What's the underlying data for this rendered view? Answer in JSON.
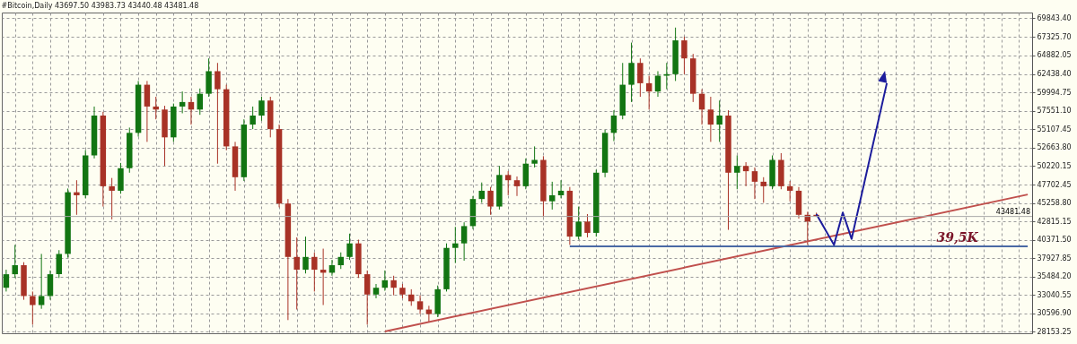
{
  "chart_data": {
    "type": "candlestick",
    "title": "#Bitcoin,Daily  43697.50 43983.73 43440.48 43481.48",
    "categories": [
      null,
      null,
      null,
      null,
      null,
      null,
      null,
      null,
      null,
      null,
      null,
      null,
      null,
      null,
      null,
      null,
      null,
      null,
      null,
      null,
      null,
      null,
      null,
      null,
      null,
      null,
      null,
      null,
      null,
      null,
      null,
      null,
      null,
      null,
      null,
      null,
      null,
      null,
      null,
      null,
      null,
      null,
      null,
      null,
      null,
      null,
      null,
      null,
      null,
      null,
      null,
      null,
      null,
      null,
      null,
      null,
      null,
      null,
      null,
      null,
      null,
      null,
      null,
      null,
      null,
      null,
      null,
      null,
      null,
      null,
      null,
      null,
      null,
      null,
      null,
      null,
      null,
      null,
      null,
      null,
      null,
      null,
      null,
      null,
      null,
      null,
      null,
      null,
      null,
      null,
      null,
      null,
      null,
      null,
      null,
      null,
      null,
      null,
      null,
      null,
      null,
      null,
      null,
      null,
      null,
      null,
      null,
      null,
      null,
      null,
      null,
      null,
      null,
      null,
      null,
      null,
      null
    ],
    "series": [
      {
        "type": "candlestick",
        "ohlc": [
          [
            34000,
            36400,
            33500,
            35800
          ],
          [
            35800,
            39700,
            35300,
            37000
          ],
          [
            37000,
            37400,
            32400,
            32900
          ],
          [
            32900,
            33500,
            29100,
            31700
          ],
          [
            31700,
            38500,
            31200,
            32900
          ],
          [
            32900,
            36300,
            32400,
            35800
          ],
          [
            35800,
            39000,
            35300,
            38500
          ],
          [
            38500,
            47200,
            38000,
            46700
          ],
          [
            46700,
            48300,
            43700,
            46300
          ],
          [
            46300,
            52300,
            45900,
            51600
          ],
          [
            51600,
            58100,
            51200,
            56900
          ],
          [
            56900,
            57400,
            44800,
            47500
          ],
          [
            47500,
            48600,
            43100,
            46900
          ],
          [
            46900,
            50600,
            46500,
            49900
          ],
          [
            49900,
            55300,
            49300,
            54600
          ],
          [
            54600,
            61500,
            54100,
            61000
          ],
          [
            61000,
            61500,
            53400,
            58100
          ],
          [
            58100,
            59400,
            56400,
            57700
          ],
          [
            57700,
            58200,
            50200,
            54000
          ],
          [
            54000,
            58500,
            53400,
            58100
          ],
          [
            58100,
            60100,
            57200,
            58700
          ],
          [
            58700,
            59400,
            55700,
            57700
          ],
          [
            57700,
            60500,
            57000,
            59800
          ],
          [
            59800,
            64500,
            59400,
            62800
          ],
          [
            62800,
            63900,
            50500,
            60400
          ],
          [
            60400,
            61000,
            52300,
            52800
          ],
          [
            52800,
            53400,
            46900,
            48700
          ],
          [
            48700,
            56400,
            48200,
            55700
          ],
          [
            55700,
            58100,
            55100,
            56900
          ],
          [
            56900,
            59400,
            56200,
            58900
          ],
          [
            58900,
            59400,
            54000,
            55100
          ],
          [
            55100,
            55700,
            44700,
            45200
          ],
          [
            45200,
            45800,
            29700,
            38100
          ],
          [
            38100,
            40700,
            31100,
            36400
          ],
          [
            36400,
            40800,
            35900,
            38100
          ],
          [
            38100,
            38700,
            33500,
            36400
          ],
          [
            36400,
            39200,
            31700,
            36000
          ],
          [
            36000,
            37700,
            35600,
            37000
          ],
          [
            37000,
            38700,
            36500,
            38100
          ],
          [
            38100,
            41200,
            37700,
            39900
          ],
          [
            39900,
            40400,
            35300,
            35800
          ],
          [
            35800,
            36300,
            29100,
            33100
          ],
          [
            33100,
            34500,
            32600,
            34000
          ],
          [
            34000,
            36300,
            33600,
            35000
          ],
          [
            35000,
            35600,
            33000,
            34000
          ],
          [
            34000,
            34500,
            32600,
            33100
          ],
          [
            33100,
            33800,
            31600,
            32200
          ],
          [
            32200,
            33000,
            30500,
            31100
          ],
          [
            31100,
            31600,
            29400,
            30500
          ],
          [
            30500,
            34300,
            30100,
            33800
          ],
          [
            33800,
            39900,
            33500,
            39300
          ],
          [
            39300,
            42100,
            37300,
            39900
          ],
          [
            39900,
            42700,
            37600,
            42200
          ],
          [
            42200,
            46200,
            41800,
            45800
          ],
          [
            45800,
            48000,
            45300,
            46900
          ],
          [
            46900,
            47400,
            43700,
            44800
          ],
          [
            44800,
            50200,
            44400,
            49000
          ],
          [
            49000,
            49500,
            46300,
            48300
          ],
          [
            48300,
            48800,
            46200,
            47500
          ],
          [
            47500,
            51200,
            47100,
            50500
          ],
          [
            50500,
            52800,
            50000,
            51000
          ],
          [
            51000,
            51500,
            43400,
            45500
          ],
          [
            45500,
            48100,
            44400,
            46300
          ],
          [
            46300,
            48300,
            45900,
            46900
          ],
          [
            46900,
            47400,
            39700,
            40800
          ],
          [
            40800,
            44800,
            40400,
            42800
          ],
          [
            42800,
            43800,
            40700,
            41300
          ],
          [
            41300,
            49700,
            40800,
            49300
          ],
          [
            49300,
            55000,
            48700,
            54600
          ],
          [
            54600,
            57600,
            53500,
            56900
          ],
          [
            56900,
            63900,
            56400,
            61000
          ],
          [
            61000,
            66600,
            58700,
            63900
          ],
          [
            63900,
            64500,
            59400,
            61200
          ],
          [
            61200,
            62200,
            57700,
            60100
          ],
          [
            60100,
            62800,
            59400,
            62200
          ],
          [
            62200,
            63900,
            60400,
            62400
          ],
          [
            62400,
            68600,
            61500,
            66900
          ],
          [
            66900,
            67400,
            62400,
            64500
          ],
          [
            64500,
            65100,
            58700,
            59800
          ],
          [
            59800,
            60400,
            55700,
            57700
          ],
          [
            57700,
            59400,
            53400,
            55700
          ],
          [
            55700,
            58900,
            53400,
            56900
          ],
          [
            56900,
            57600,
            41700,
            49300
          ],
          [
            49300,
            51600,
            47100,
            50200
          ],
          [
            50200,
            50700,
            47500,
            49500
          ],
          [
            49500,
            50000,
            45800,
            48100
          ],
          [
            48100,
            48700,
            45300,
            47500
          ],
          [
            47500,
            51600,
            47100,
            51000
          ],
          [
            51000,
            51900,
            47100,
            47500
          ],
          [
            47500,
            48200,
            45500,
            46900
          ],
          [
            46900,
            47400,
            43200,
            43700
          ],
          [
            43700,
            44100,
            39700,
            42800
          ],
          [
            43697.5,
            43983.73,
            43440.48,
            43481.48
          ],
          null,
          null,
          null,
          null,
          null,
          null,
          null,
          null,
          null,
          null,
          null,
          null,
          null,
          null,
          null,
          null,
          null,
          null,
          null,
          null,
          null,
          null,
          null,
          null
        ],
        "colors": [
          "#127512",
          "#127512",
          "#a83226",
          "#a83226",
          "#127512",
          "#127512",
          "#127512",
          "#127512",
          "#a83226",
          "#127512",
          "#127512",
          "#a83226",
          "#a83226",
          "#127512",
          "#127512",
          "#127512",
          "#a83226",
          "#a83226",
          "#a83226",
          "#127512",
          "#127512",
          "#a83226",
          "#127512",
          "#127512",
          "#a83226",
          "#a83226",
          "#a83226",
          "#127512",
          "#127512",
          "#127512",
          "#a83226",
          "#a83226",
          "#a83226",
          "#a83226",
          "#127512",
          "#a83226",
          "#a83226",
          "#127512",
          "#127512",
          "#127512",
          "#a83226",
          "#a83226",
          "#127512",
          "#127512",
          "#a83226",
          "#a83226",
          "#a83226",
          "#a83226",
          "#a83226",
          "#127512",
          "#127512",
          "#127512",
          "#127512",
          "#127512",
          "#127512",
          "#a83226",
          "#127512",
          "#a83226",
          "#a83226",
          "#127512",
          "#127512",
          "#a83226",
          "#127512",
          "#127512",
          "#a83226",
          "#127512",
          "#a83226",
          "#127512",
          "#127512",
          "#127512",
          "#127512",
          "#127512",
          "#a83226",
          "#a83226",
          "#127512",
          "#127512",
          "#127512",
          "#a83226",
          "#a83226",
          "#a83226",
          "#a83226",
          "#127512",
          "#a83226",
          "#127512",
          "#a83226",
          "#a83226",
          "#a83226",
          "#127512",
          "#a83226",
          "#a83226",
          "#a83226",
          "#a83226",
          "#a83226",
          null,
          null,
          null,
          null,
          null,
          null,
          null,
          null,
          null,
          null,
          null,
          null,
          null,
          null,
          null,
          null,
          null,
          null,
          null,
          null,
          null,
          null,
          null,
          null
        ]
      },
      {
        "type": "line",
        "color": "#c0504d",
        "values": [
          null,
          null,
          null,
          null,
          null,
          null,
          null,
          null,
          null,
          null,
          null,
          null,
          null,
          null,
          null,
          null,
          null,
          null,
          null,
          null,
          null,
          null,
          null,
          null,
          null,
          null,
          null,
          null,
          null,
          null,
          null,
          null,
          null,
          null,
          null,
          null,
          null,
          null,
          null,
          null,
          null,
          null,
          null,
          28200,
          null,
          null,
          null,
          null,
          null,
          null,
          null,
          null,
          null,
          null,
          null,
          null,
          null,
          null,
          null,
          null,
          null,
          null,
          null,
          null,
          null,
          null,
          null,
          null,
          null,
          null,
          null,
          null,
          null,
          null,
          null,
          null,
          null,
          null,
          null,
          null,
          null,
          null,
          null,
          null,
          null,
          null,
          null,
          null,
          null,
          null,
          null,
          null,
          null,
          null,
          null,
          null,
          null,
          null,
          null,
          null,
          null,
          null,
          null,
          null,
          null,
          null,
          null,
          null,
          null,
          null,
          null,
          null,
          null,
          null,
          null,
          null,
          46400
        ]
      },
      {
        "type": "line",
        "color": "#4a6aa5",
        "values": [
          null,
          null,
          null,
          null,
          null,
          null,
          null,
          null,
          null,
          null,
          null,
          null,
          null,
          null,
          null,
          null,
          null,
          null,
          null,
          null,
          null,
          null,
          null,
          null,
          null,
          null,
          null,
          null,
          null,
          null,
          null,
          null,
          null,
          null,
          null,
          null,
          null,
          null,
          null,
          null,
          null,
          null,
          null,
          null,
          null,
          null,
          null,
          null,
          null,
          null,
          null,
          null,
          null,
          null,
          null,
          null,
          null,
          null,
          null,
          null,
          null,
          null,
          null,
          null,
          39500,
          null,
          null,
          null,
          null,
          null,
          null,
          null,
          null,
          null,
          null,
          null,
          null,
          null,
          null,
          null,
          null,
          null,
          null,
          null,
          null,
          null,
          null,
          null,
          null,
          null,
          null,
          null,
          null,
          null,
          null,
          null,
          null,
          null,
          null,
          null,
          null,
          null,
          null,
          null,
          null,
          null,
          null,
          null,
          null,
          null,
          null,
          null,
          null,
          null,
          null,
          null,
          39500
        ]
      },
      {
        "type": "line",
        "color": "#1c1c9c",
        "values": [
          null,
          null,
          null,
          null,
          null,
          null,
          null,
          null,
          null,
          null,
          null,
          null,
          null,
          null,
          null,
          null,
          null,
          null,
          null,
          null,
          null,
          null,
          null,
          null,
          null,
          null,
          null,
          null,
          null,
          null,
          null,
          null,
          null,
          null,
          null,
          null,
          null,
          null,
          null,
          null,
          null,
          null,
          null,
          null,
          null,
          null,
          null,
          null,
          null,
          null,
          null,
          null,
          null,
          null,
          null,
          null,
          null,
          null,
          null,
          null,
          null,
          null,
          null,
          null,
          null,
          null,
          null,
          null,
          null,
          null,
          null,
          null,
          null,
          null,
          null,
          null,
          null,
          null,
          null,
          null,
          null,
          null,
          null,
          null,
          null,
          null,
          null,
          null,
          null,
          null,
          null,
          null,
          43800,
          null,
          39700,
          44000,
          40500,
          null,
          null,
          null,
          61200,
          null,
          null,
          null,
          null,
          null,
          null,
          null,
          null,
          null,
          null,
          null,
          null,
          null,
          null,
          null,
          null
        ]
      }
    ],
    "ylim": [
      27950,
      70600
    ],
    "yticks": [
      {
        "value": 28153.25,
        "label": "28153.25"
      },
      {
        "value": 30596.9,
        "label": "30596.90"
      },
      {
        "value": 33040.55,
        "label": "33040.55"
      },
      {
        "value": 35484.2,
        "label": "35484.20"
      },
      {
        "value": 37927.85,
        "label": "37927.85"
      },
      {
        "value": 40371.5,
        "label": "40371.50"
      },
      {
        "value": 42815.15,
        "label": "42815.15"
      },
      {
        "value": 45258.8,
        "label": "45258.80"
      },
      {
        "value": 47702.45,
        "label": "47702.45"
      },
      {
        "value": 50220.15,
        "label": "50220.15"
      },
      {
        "value": 52663.8,
        "label": "52663.80"
      },
      {
        "value": 55107.45,
        "label": "55107.45"
      },
      {
        "value": 57551.1,
        "label": "57551.10"
      },
      {
        "value": 59994.75,
        "label": "59994.75"
      },
      {
        "value": 62438.4,
        "label": "62438.40"
      },
      {
        "value": 64882.05,
        "label": "64882.05"
      },
      {
        "value": 67325.7,
        "label": "67325.70"
      },
      {
        "value": 69843.4,
        "label": "69843.40"
      }
    ],
    "ref_lines": [
      {
        "axis": "y",
        "value": 43481.48,
        "label": "43481.48",
        "color": "#a8a8a8"
      }
    ],
    "annotations": [
      {
        "text": "39,5K",
        "y": 39500
      }
    ],
    "grid": true,
    "tick_labels": "y"
  }
}
